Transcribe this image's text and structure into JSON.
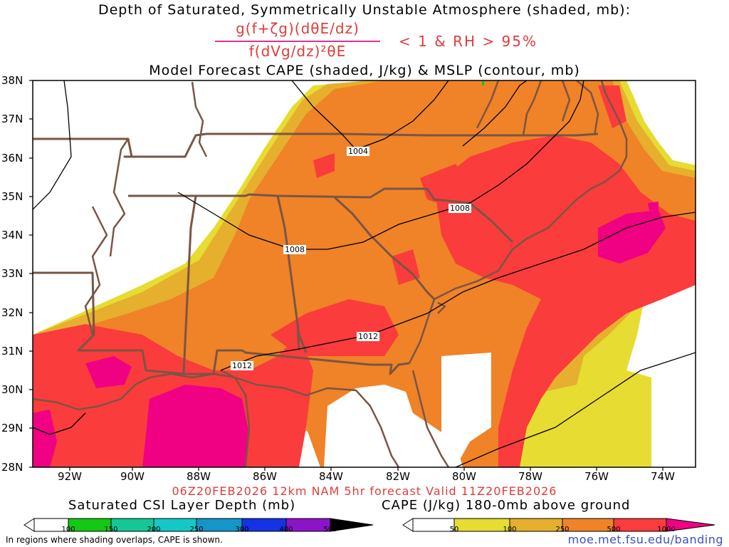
{
  "header": {
    "title": "Depth of Saturated, Symmetrically Unstable Atmosphere (shaded, mb):",
    "formula_numerator": "g(f+ζg)(dθE/dz)",
    "formula_denominator": "f(dVg/dz)²θE",
    "condition": "< 1 & RH > 95%",
    "subtitle": "Model Forecast CAPE (shaded, J/kg) & MSLP (contour, mb)"
  },
  "axes": {
    "lat_labels": [
      "38N",
      "37N",
      "36N",
      "35N",
      "34N",
      "33N",
      "32N",
      "31N",
      "30N",
      "29N",
      "28N"
    ],
    "lon_labels": [
      "92W",
      "90W",
      "88W",
      "86W",
      "84W",
      "82W",
      "80W",
      "78W",
      "76W",
      "74W"
    ]
  },
  "isobars": [
    "1004",
    "1008",
    "1008",
    "1012",
    "1012"
  ],
  "valid_line": "06Z20FEB2026 12km NAM 5hr forecast Valid 11Z20FEB2026",
  "colorbars": {
    "csi": {
      "title": "Saturated CSI Layer Depth (mb)",
      "ticks": [
        "100",
        "150",
        "200",
        "250",
        "300",
        "400",
        "500",
        "600"
      ],
      "colors": [
        "#ffffff",
        "#14c814",
        "#14c896",
        "#14c8c8",
        "#1496c8",
        "#1432e6",
        "#1414c8",
        "#8c14c8",
        "#000000"
      ]
    },
    "cape": {
      "title": "CAPE (J/kg) 180-0mb above ground",
      "ticks": [
        "50",
        "100",
        "250",
        "500",
        "1000"
      ],
      "colors": [
        "#ffffff",
        "#e6dc32",
        "#e6af2d",
        "#f08228",
        "#fa3c3c",
        "#f00082"
      ]
    }
  },
  "footnote": "In regions where shading overlaps, CAPE is shown.",
  "url": "moe.met.fsu.edu/banding"
}
